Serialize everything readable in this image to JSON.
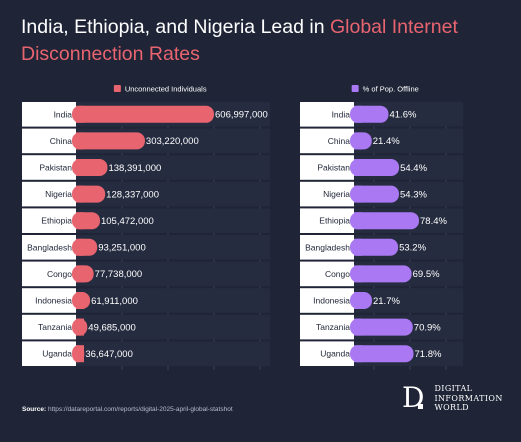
{
  "title": {
    "prefix": "India, Ethiopia, and Nigeria Lead in ",
    "highlight_line1": "Global Internet",
    "highlight_line2": "Disconnection Rates"
  },
  "source": {
    "label": "Source:",
    "text": " https://datareportal.com/reports/digital-2025-april-global-statshot"
  },
  "logo": {
    "mark": "D",
    "line1": "DIGITAL",
    "line2": "INFORMATION",
    "line3": "WORLD"
  },
  "colors": {
    "background": "#1f2537",
    "panel": "#262c40",
    "unconnected": "#e8646f",
    "offline": "#a978f2",
    "text": "#ffffff"
  },
  "chart_data": [
    {
      "type": "bar",
      "orientation": "horizontal",
      "legend": "Unconnected Individuals",
      "legend_placement": "top",
      "color": "#e8646f",
      "categories": [
        "India",
        "China",
        "Pakistan",
        "Nigeria",
        "Ethiopia",
        "Bangladesh",
        "Congo",
        "Indonesia",
        "Tanzania",
        "Uganda"
      ],
      "values": [
        606997000,
        303220000,
        138391000,
        128337000,
        105472000,
        93251000,
        77738000,
        61911000,
        49685000,
        36647000
      ],
      "labels": [
        "606,997,000",
        "303,220,000",
        "138,391,000",
        "128,337,000",
        "105,472,000",
        "93,251,000",
        "77,738,000",
        "61,911,000",
        "49,685,000",
        "36,647,000"
      ],
      "xlim": [
        0,
        720000000
      ],
      "grid": true
    },
    {
      "type": "bar",
      "orientation": "horizontal",
      "legend": "% of Pop. Offline",
      "legend_placement": "top",
      "color": "#a978f2",
      "categories": [
        "India",
        "China",
        "Pakistan",
        "Nigeria",
        "Ethiopia",
        "Bangladesh",
        "Congo",
        "Indonesia",
        "Tanzania",
        "Uganda"
      ],
      "values": [
        41.6,
        21.4,
        54.4,
        54.3,
        78.4,
        53.2,
        69.5,
        21.7,
        70.9,
        71.8
      ],
      "labels": [
        "41.6%",
        "21.4%",
        "54.4%",
        "54.3%",
        "78.4%",
        "53.2%",
        "69.5%",
        "21.7%",
        "70.9%",
        "71.8%"
      ],
      "xlim": [
        0,
        95
      ],
      "grid": true
    }
  ]
}
